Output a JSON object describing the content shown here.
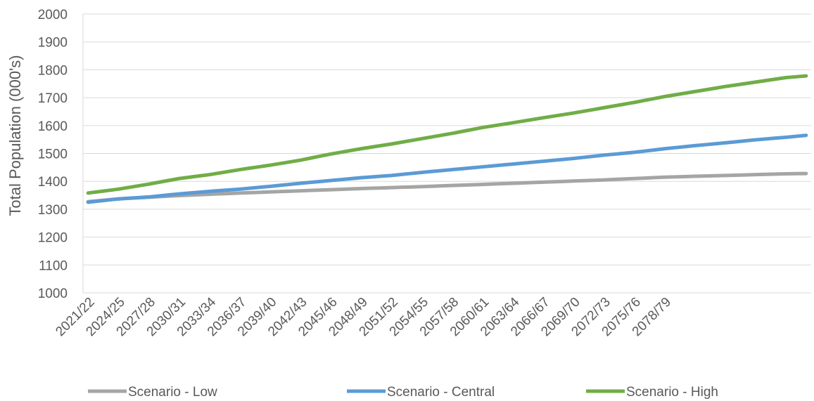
{
  "chart_data": {
    "type": "line",
    "title": "",
    "xlabel": "",
    "ylabel": "Total Population (000's)",
    "ylim": [
      1000,
      2000
    ],
    "yticks": [
      1000,
      1100,
      1200,
      1300,
      1400,
      1500,
      1600,
      1700,
      1800,
      1900,
      2000
    ],
    "grid": true,
    "legend_position": "bottom",
    "x_tick_labels": [
      "2021/22",
      "2024/25",
      "2027/28",
      "2030/31",
      "2033/34",
      "2036/37",
      "2039/40",
      "2042/43",
      "2045/46",
      "2048/49",
      "2051/52",
      "2054/55",
      "2057/58",
      "2060/61",
      "2063/64",
      "2066/67",
      "2069/70",
      "2072/73",
      "2075/76",
      "2078/79"
    ],
    "x_start": "2021/22",
    "x_end": "2079/80",
    "series": [
      {
        "name": "Scenario - Low",
        "color": "#a5a5a5",
        "knots": [
          [
            0,
            1327
          ],
          [
            3,
            1337
          ],
          [
            6,
            1343
          ],
          [
            9,
            1349
          ],
          [
            15,
            1358
          ],
          [
            21,
            1366
          ],
          [
            27,
            1374
          ],
          [
            33,
            1381
          ],
          [
            39,
            1389
          ],
          [
            45,
            1397
          ],
          [
            51,
            1405
          ],
          [
            57,
            1415
          ],
          [
            60,
            1418
          ],
          [
            66,
            1424
          ],
          [
            69,
            1427
          ],
          [
            71,
            1428
          ]
        ]
      },
      {
        "name": "Scenario - Central",
        "color": "#5b9bd5",
        "knots": [
          [
            0,
            1325
          ],
          [
            3,
            1337
          ],
          [
            6,
            1344
          ],
          [
            9,
            1355
          ],
          [
            12,
            1364
          ],
          [
            15,
            1372
          ],
          [
            18,
            1382
          ],
          [
            21,
            1393
          ],
          [
            24,
            1403
          ],
          [
            27,
            1413
          ],
          [
            30,
            1421
          ],
          [
            33,
            1432
          ],
          [
            36,
            1442
          ],
          [
            39,
            1452
          ],
          [
            42,
            1462
          ],
          [
            45,
            1472
          ],
          [
            48,
            1482
          ],
          [
            51,
            1494
          ],
          [
            54,
            1504
          ],
          [
            57,
            1517
          ],
          [
            60,
            1528
          ],
          [
            63,
            1538
          ],
          [
            66,
            1549
          ],
          [
            69,
            1558
          ],
          [
            71,
            1565
          ]
        ]
      },
      {
        "name": "Scenario - High",
        "color": "#70ad47",
        "knots": [
          [
            0,
            1358
          ],
          [
            3,
            1372
          ],
          [
            6,
            1390
          ],
          [
            9,
            1410
          ],
          [
            12,
            1424
          ],
          [
            15,
            1442
          ],
          [
            18,
            1458
          ],
          [
            21,
            1476
          ],
          [
            24,
            1498
          ],
          [
            27,
            1517
          ],
          [
            30,
            1534
          ],
          [
            33,
            1553
          ],
          [
            36,
            1572
          ],
          [
            39,
            1593
          ],
          [
            42,
            1610
          ],
          [
            45,
            1628
          ],
          [
            48,
            1645
          ],
          [
            51,
            1664
          ],
          [
            54,
            1683
          ],
          [
            57,
            1704
          ],
          [
            60,
            1722
          ],
          [
            63,
            1740
          ],
          [
            66,
            1756
          ],
          [
            69,
            1772
          ],
          [
            71,
            1778
          ]
        ]
      }
    ]
  }
}
